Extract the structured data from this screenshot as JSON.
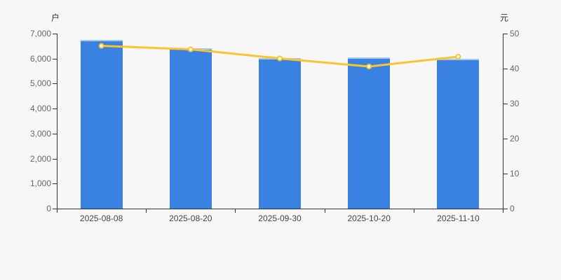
{
  "chart_data": {
    "type": "combo",
    "title": "",
    "categories": [
      "2025-08-08",
      "2025-08-20",
      "2025-09-30",
      "2025-10-20",
      "2025-11-10"
    ],
    "series": [
      {
        "id": "bar-series",
        "type": "bar",
        "axis": "left",
        "values": [
          6740,
          6420,
          6030,
          6050,
          5990
        ],
        "color": "#3a82e2"
      },
      {
        "id": "line-series",
        "type": "line",
        "axis": "right",
        "values": [
          46.5,
          45.5,
          42.9,
          40.6,
          43.4
        ],
        "color": "#fbc32d",
        "marker_fill": "#ffffff"
      }
    ],
    "left_axis": {
      "name": "户",
      "min": 0,
      "max": 7000,
      "step": 1000
    },
    "right_axis": {
      "name": "元",
      "min": 0,
      "max": 50,
      "step": 10
    },
    "grid": false,
    "legend": false
  },
  "colors": {
    "background": "#f7f7f7",
    "axis": "#333333",
    "tick_label": "#666666",
    "category_label": "#444444",
    "axis_name": "#333333",
    "bar_top_edge": "#a9c6ef"
  }
}
